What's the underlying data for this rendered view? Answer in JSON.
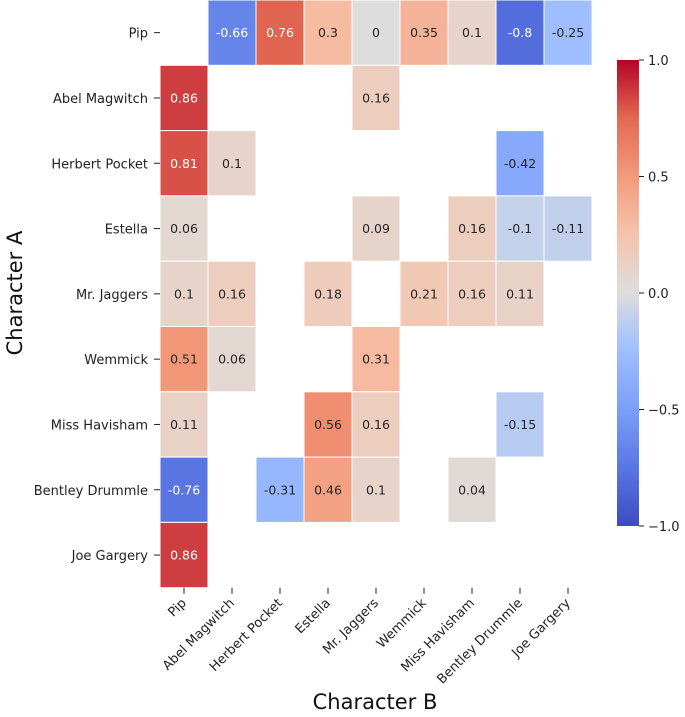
{
  "chart_data": {
    "type": "heatmap",
    "title": "",
    "xlabel": "Character B",
    "ylabel": "Character A",
    "x_categories": [
      "Pip",
      "Abel Magwitch",
      "Herbert Pocket",
      "Estella",
      "Mr. Jaggers",
      "Wemmick",
      "Miss Havisham",
      "Bentley Drummle",
      "Joe Gargery"
    ],
    "y_categories": [
      "Pip",
      "Abel Magwitch",
      "Herbert Pocket",
      "Estella",
      "Mr. Jaggers",
      "Wemmick",
      "Miss Havisham",
      "Bentley Drummle",
      "Joe Gargery"
    ],
    "values": [
      [
        null,
        -0.66,
        0.76,
        0.3,
        0,
        0.35,
        0.1,
        -0.8,
        -0.25
      ],
      [
        0.86,
        null,
        null,
        null,
        0.16,
        null,
        null,
        null,
        null
      ],
      [
        0.81,
        0.1,
        null,
        null,
        null,
        null,
        null,
        -0.42,
        null
      ],
      [
        0.06,
        null,
        null,
        null,
        0.09,
        null,
        0.16,
        -0.1,
        -0.11
      ],
      [
        0.1,
        0.16,
        null,
        0.18,
        null,
        0.21,
        0.16,
        0.11,
        null
      ],
      [
        0.51,
        0.06,
        null,
        null,
        0.31,
        null,
        null,
        null,
        null
      ],
      [
        0.11,
        null,
        null,
        0.56,
        0.16,
        null,
        null,
        -0.15,
        null
      ],
      [
        -0.76,
        null,
        -0.31,
        0.46,
        0.1,
        null,
        0.04,
        null,
        null
      ],
      [
        0.86,
        null,
        null,
        null,
        null,
        null,
        null,
        null,
        null
      ]
    ],
    "colormap": "coolwarm",
    "vmin": -1.0,
    "vmax": 1.0,
    "colorbar_ticks": [
      1.0,
      0.5,
      0.0,
      -0.5,
      -1.0
    ],
    "colorbar_tick_labels": [
      "1.0",
      "0.5",
      "0.0",
      "−0.5",
      "−1.0"
    ]
  }
}
